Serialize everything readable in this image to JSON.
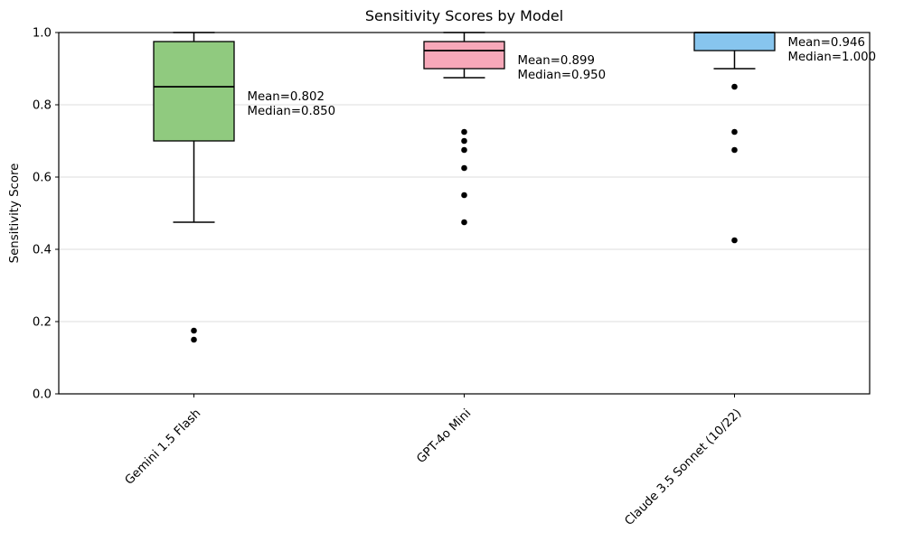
{
  "chart_data": {
    "type": "box",
    "title": "Sensitivity Scores by Model",
    "xlabel": "",
    "ylabel": "Sensitivity Score",
    "ylim": [
      0.0,
      1.0
    ],
    "yticks": [
      0.0,
      0.2,
      0.4,
      0.6,
      0.8,
      1.0
    ],
    "ytick_labels": [
      "0.0",
      "0.2",
      "0.4",
      "0.6",
      "0.8",
      "1.0"
    ],
    "grid": "horizontal-y-only",
    "grid_color": "#dcdcdc",
    "frame_color": "#000000",
    "edge_color": "#000000",
    "outlier_color": "#000000",
    "legend": "none",
    "categories": [
      "Gemini 1.5 Flash",
      "GPT-4o Mini",
      "Claude 3.5 Sonnet (10/22)"
    ],
    "series": [
      {
        "name": "Gemini 1.5 Flash",
        "color": "#90ca7f",
        "whisker_low": 0.475,
        "q1": 0.7,
        "median": 0.85,
        "q3": 0.975,
        "whisker_high": 1.0,
        "mean": 0.802,
        "outliers": [
          0.175,
          0.15
        ],
        "annotation_lines": [
          "Mean=0.802",
          "Median=0.850"
        ]
      },
      {
        "name": "GPT-4o Mini",
        "color": "#f7a8b9",
        "whisker_low": 0.875,
        "q1": 0.9,
        "median": 0.95,
        "q3": 0.975,
        "whisker_high": 1.0,
        "mean": 0.899,
        "outliers": [
          0.725,
          0.7,
          0.675,
          0.625,
          0.55,
          0.475
        ],
        "annotation_lines": [
          "Mean=0.899",
          "Median=0.950"
        ]
      },
      {
        "name": "Claude 3.5 Sonnet (10/22)",
        "color": "#87c5ee",
        "whisker_low": 0.9,
        "q1": 0.95,
        "median": 1.0,
        "q3": 1.0,
        "whisker_high": 1.0,
        "mean": 0.946,
        "outliers": [
          0.85,
          0.725,
          0.675,
          0.425
        ],
        "annotation_lines": [
          "Mean=0.946",
          "Median=1.000"
        ]
      }
    ]
  }
}
